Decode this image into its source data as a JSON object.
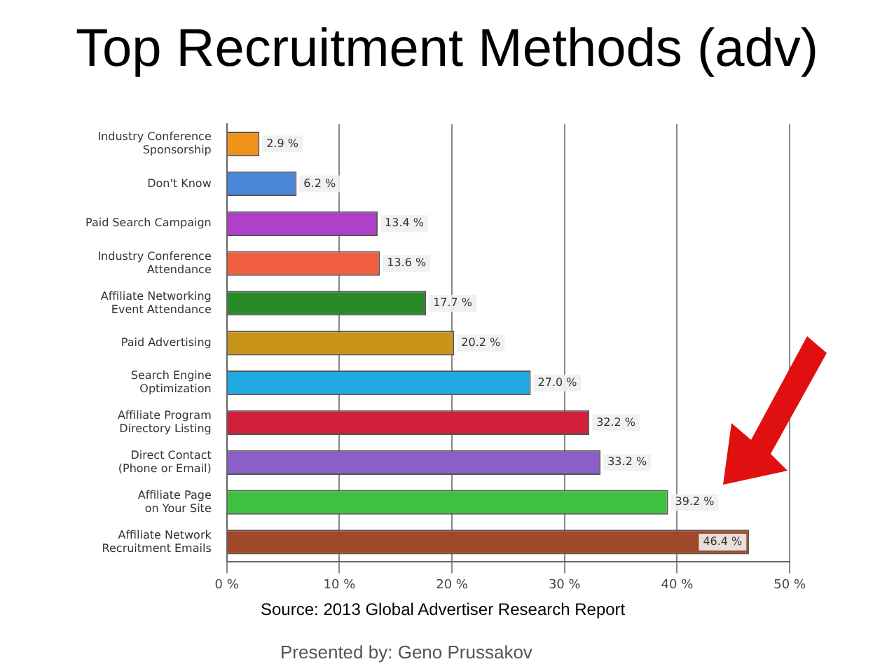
{
  "chart_data": {
    "type": "bar",
    "orientation": "horizontal",
    "title": "Top Recruitment Methods (adv)",
    "categories": [
      "Industry Conference\nSponsorship",
      "Don't Know",
      "Paid Search Campaign",
      "Industry Conference\nAttendance",
      "Affiliate Networking\nEvent Attendance",
      "Paid Advertising",
      "Search Engine\nOptimization",
      "Affiliate Program\nDirectory Listing",
      "Direct Contact\n(Phone or Email)",
      "Affiliate Page\non Your Site",
      "Affiliate Network\nRecruitment Emails"
    ],
    "values": [
      2.9,
      6.2,
      13.4,
      13.6,
      17.7,
      20.2,
      27.0,
      32.2,
      33.2,
      39.2,
      46.4
    ],
    "value_labels": [
      "2.9 %",
      "6.2 %",
      "13.4 %",
      "13.6 %",
      "17.7 %",
      "20.2 %",
      "27.0 %",
      "32.2 %",
      "33.2 %",
      "39.2 %",
      "46.4 %"
    ],
    "colors": [
      "#f0931c",
      "#4a86d8",
      "#b040c8",
      "#f06040",
      "#2a8a2a",
      "#c8941a",
      "#20a8e0",
      "#d0203c",
      "#8a60c8",
      "#40c040",
      "#a04828"
    ],
    "xlim": [
      0,
      50
    ],
    "xticks": [
      {
        "value": 0,
        "label": "0 %"
      },
      {
        "value": 10,
        "label": "10 %"
      },
      {
        "value": 20,
        "label": "20 %"
      },
      {
        "value": 30,
        "label": "30 %"
      },
      {
        "value": 40,
        "label": "40 %"
      },
      {
        "value": 50,
        "label": "50 %"
      }
    ],
    "grid": "x",
    "legend": false,
    "annotations": [
      "Source: 2013 Global Advertiser Research Report",
      "Presented by: Geno Prussakov"
    ]
  }
}
